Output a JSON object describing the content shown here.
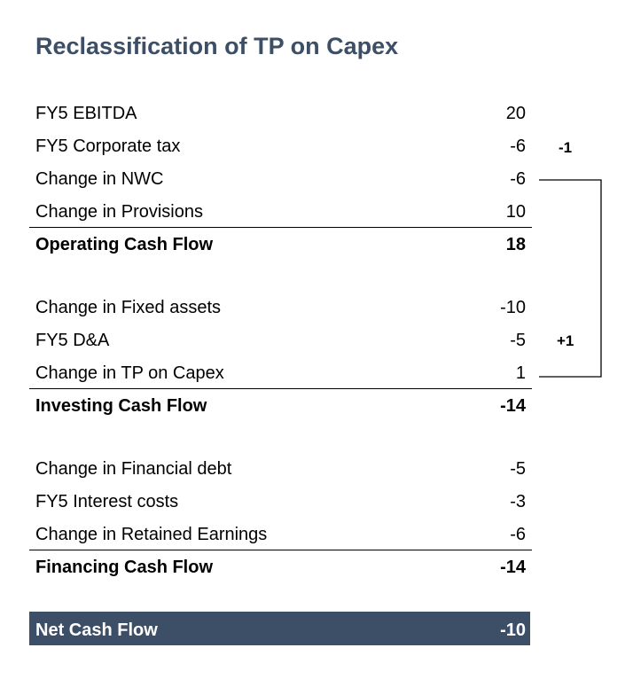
{
  "title": "Reclassification of TP on Capex",
  "sections": [
    {
      "rows": [
        {
          "label": "FY5 EBITDA",
          "value": 20
        },
        {
          "label": "FY5 Corporate tax",
          "value": -6
        },
        {
          "label": "Change in NWC",
          "value": -6
        },
        {
          "label": "Change in Provisions",
          "value": 10
        }
      ],
      "total": {
        "label": "Operating Cash Flow",
        "value": 18
      }
    },
    {
      "rows": [
        {
          "label": "Change in Fixed assets",
          "value": -10
        },
        {
          "label": "FY5 D&A",
          "value": -5
        },
        {
          "label": "Change in TP on Capex",
          "value": 1
        }
      ],
      "total": {
        "label": "Investing Cash Flow",
        "value": -14
      }
    },
    {
      "rows": [
        {
          "label": "Change in Financial debt",
          "value": -5
        },
        {
          "label": "FY5 Interest costs",
          "value": -3
        },
        {
          "label": "Change in Retained Earnings",
          "value": -6
        }
      ],
      "total": {
        "label": "Financing Cash Flow",
        "value": -14
      }
    }
  ],
  "net": {
    "label": "Net Cash Flow",
    "value": -10
  },
  "annotations": [
    "-1",
    "+1"
  ]
}
